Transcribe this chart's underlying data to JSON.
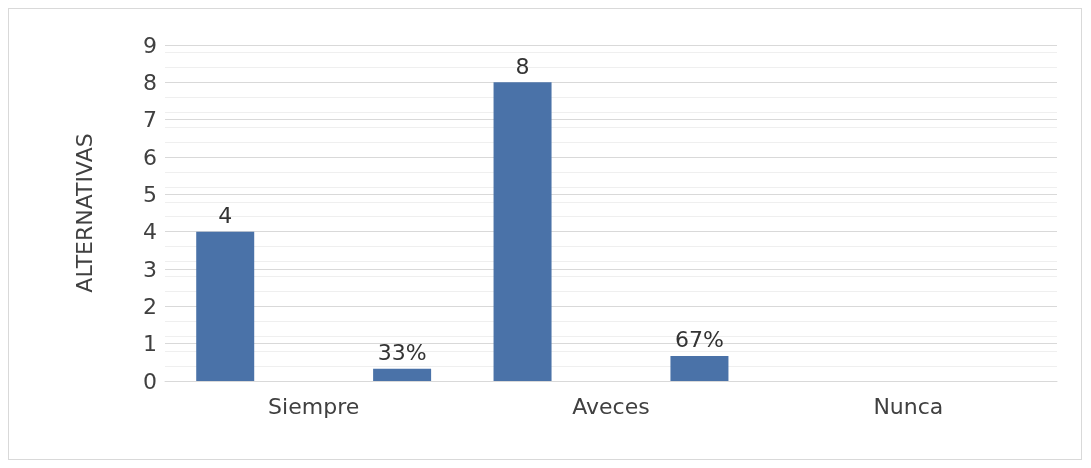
{
  "chart_data": {
    "type": "bar",
    "ylabel": "ALTERNATIVAS",
    "categories": [
      "Siempre",
      "Aveces",
      "Nunca"
    ],
    "series": [
      {
        "color": "#4a72a8",
        "values": [
          4,
          8,
          null
        ],
        "value_labels": [
          "4",
          "8",
          null
        ]
      },
      {
        "color": "#4a72a8",
        "values": [
          0.33,
          0.67,
          null
        ],
        "value_labels": [
          "33%",
          "67%",
          null
        ]
      }
    ],
    "ylim": [
      0,
      9
    ],
    "yticks": [
      0,
      1,
      2,
      3,
      4,
      5,
      6,
      7,
      8,
      9
    ],
    "grid": "y"
  }
}
